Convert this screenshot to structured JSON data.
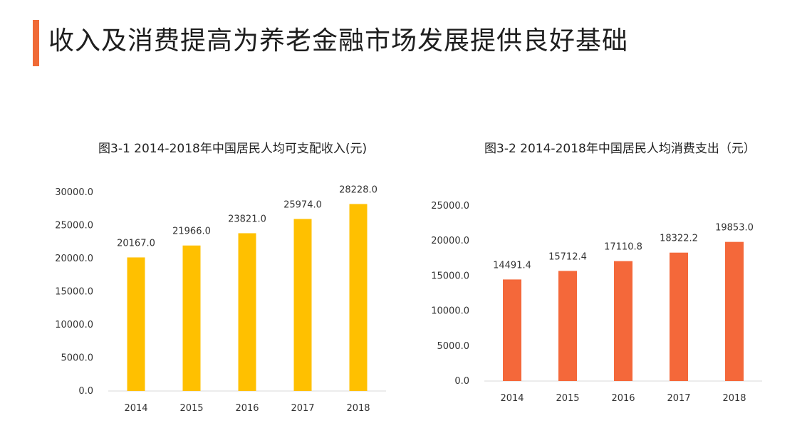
{
  "page": {
    "title": "收入及消费提高为养老金融市场发展提供良好基础"
  },
  "colors": {
    "accent": "#f06a36",
    "income_bar": "#ffc000",
    "spending_bar": "#f4683a",
    "axis": "#d9d9d9"
  },
  "chart_data": [
    {
      "type": "bar",
      "title": "图3-1 2014-2018年中国居民人均可支配收入(元)",
      "categories": [
        "2014",
        "2015",
        "2016",
        "2017",
        "2018"
      ],
      "values": [
        20167.0,
        21966.0,
        23821.0,
        25974.0,
        28228.0
      ],
      "data_labels": [
        "20167.0",
        "21966.0",
        "23821.0",
        "25974.0",
        "28228.0"
      ],
      "yticks": [
        "0.0",
        "5000.0",
        "10000.0",
        "15000.0",
        "20000.0",
        "25000.0",
        "30000.0"
      ],
      "ylim": [
        0,
        30000
      ],
      "grid": false,
      "legend": "none",
      "color": "#ffc000"
    },
    {
      "type": "bar",
      "title": "图3-2 2014-2018年中国居民人均消费支出（元）",
      "categories": [
        "2014",
        "2015",
        "2016",
        "2017",
        "2018"
      ],
      "values": [
        14491.4,
        15712.4,
        17110.8,
        18322.2,
        19853.0
      ],
      "data_labels": [
        "14491.4",
        "15712.4",
        "17110.8",
        "18322.2",
        "19853.0"
      ],
      "yticks": [
        "0.0",
        "5000.0",
        "10000.0",
        "15000.0",
        "20000.0",
        "25000.0"
      ],
      "ylim": [
        0,
        25000
      ],
      "grid": false,
      "legend": "none",
      "color": "#f4683a"
    }
  ]
}
